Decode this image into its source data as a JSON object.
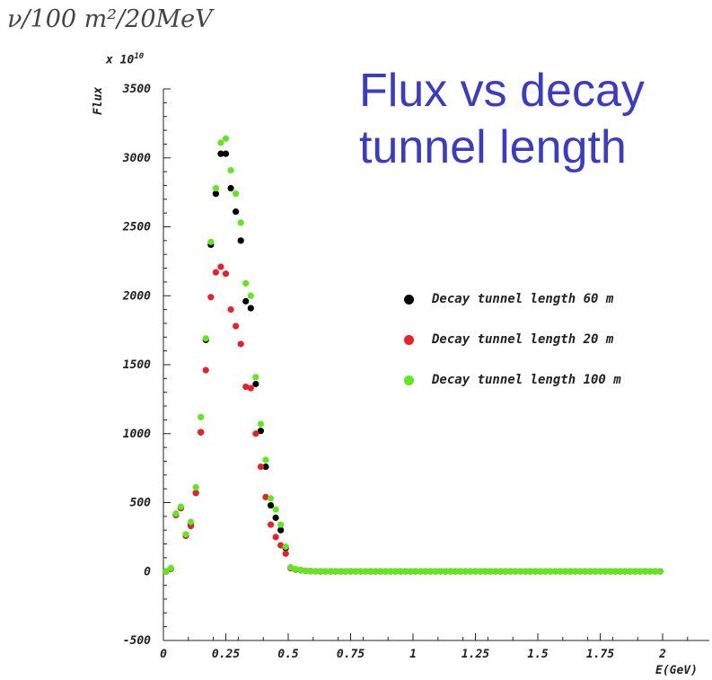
{
  "header": {
    "unit_text": "ν/100 m²/20MeV",
    "title": "Flux vs decay tunnel length"
  },
  "colors": {
    "title": "#3b3bc4",
    "series_60": "#000000",
    "series_20": "#e8202a",
    "series_100": "#5fe81c"
  },
  "chart_data": {
    "type": "scatter",
    "title": "Flux vs decay tunnel length",
    "xlabel": "E(GeV)",
    "ylabel": "Flux",
    "y_multiplier": "x 10^10",
    "multiplier_base": "x 10",
    "multiplier_exp": "10",
    "xlim": [
      0,
      2.2
    ],
    "ylim": [
      -500,
      3500
    ],
    "xticks": [
      0,
      0.25,
      0.5,
      0.75,
      1,
      1.25,
      1.5,
      1.75,
      2
    ],
    "xtick_labels": [
      "0",
      "0.25",
      "0.5",
      "0.75",
      "1",
      "1.25",
      "1.5",
      "1.75",
      "2"
    ],
    "yticks": [
      -500,
      0,
      500,
      1000,
      1500,
      2000,
      2500,
      3000,
      3500
    ],
    "ytick_labels": [
      "-500",
      "0",
      "500",
      "1000",
      "1500",
      "2000",
      "2500",
      "3000",
      "3500"
    ],
    "grid": false,
    "legend_position": "right-middle",
    "x": [
      0.01,
      0.03,
      0.05,
      0.07,
      0.09,
      0.11,
      0.13,
      0.15,
      0.17,
      0.19,
      0.21,
      0.23,
      0.25,
      0.27,
      0.29,
      0.31,
      0.33,
      0.35,
      0.37,
      0.39,
      0.41,
      0.43,
      0.45,
      0.47,
      0.49,
      0.51,
      0.53,
      0.55,
      0.57,
      0.59,
      0.61,
      0.63,
      0.65,
      0.67,
      0.69,
      0.71,
      0.73,
      0.75,
      0.77,
      0.79,
      0.81,
      0.83,
      0.85,
      0.87,
      0.89,
      0.91,
      0.93,
      0.95,
      0.97,
      0.99,
      1.01,
      1.03,
      1.05,
      1.07,
      1.09,
      1.11,
      1.13,
      1.15,
      1.17,
      1.19,
      1.21,
      1.23,
      1.25,
      1.27,
      1.29,
      1.31,
      1.33,
      1.35,
      1.37,
      1.39,
      1.41,
      1.43,
      1.45,
      1.47,
      1.49,
      1.51,
      1.53,
      1.55,
      1.57,
      1.59,
      1.61,
      1.63,
      1.65,
      1.67,
      1.69,
      1.71,
      1.73,
      1.75,
      1.77,
      1.79,
      1.81,
      1.83,
      1.85,
      1.87,
      1.89,
      1.91,
      1.93,
      1.95,
      1.97,
      1.99
    ],
    "series": [
      {
        "name": "Decay tunnel length 60 m",
        "color": "#000000",
        "values": [
          0,
          20,
          410,
          460,
          260,
          340,
          570,
          1010,
          1680,
          2370,
          2740,
          3030,
          3030,
          2780,
          2610,
          2400,
          1960,
          1910,
          1360,
          1020,
          760,
          480,
          390,
          300,
          170,
          25,
          15,
          10,
          5,
          3,
          2,
          1,
          1,
          1,
          1,
          1,
          1,
          1,
          1,
          1,
          1,
          1,
          1,
          1,
          1,
          1,
          1,
          1,
          1,
          1,
          1,
          1,
          1,
          1,
          1,
          1,
          1,
          1,
          1,
          1,
          1,
          1,
          1,
          1,
          1,
          1,
          1,
          1,
          1,
          1,
          1,
          1,
          1,
          1,
          1,
          1,
          1,
          1,
          1,
          1,
          1,
          1,
          1,
          1,
          1,
          1,
          1,
          1,
          1,
          1,
          1,
          1,
          1,
          1,
          1,
          1,
          1,
          1,
          1,
          1
        ]
      },
      {
        "name": "Decay tunnel length 20 m",
        "color": "#e8202a",
        "values": [
          0,
          20,
          410,
          460,
          260,
          330,
          570,
          1010,
          1460,
          1990,
          2170,
          2210,
          2160,
          1900,
          1780,
          1650,
          1340,
          1330,
          1000,
          760,
          540,
          340,
          250,
          190,
          130,
          25,
          15,
          10,
          5,
          3,
          2,
          1,
          1,
          1,
          1,
          1,
          1,
          1,
          1,
          1,
          1,
          1,
          1,
          1,
          1,
          1,
          1,
          1,
          1,
          1,
          1,
          1,
          1,
          1,
          1,
          1,
          1,
          1,
          1,
          1,
          1,
          1,
          1,
          1,
          1,
          1,
          1,
          1,
          1,
          1,
          1,
          1,
          1,
          1,
          1,
          1,
          1,
          1,
          1,
          1,
          1,
          1,
          1,
          1,
          1,
          1,
          1,
          1,
          1,
          1,
          1,
          1,
          1,
          1,
          1,
          1,
          1,
          1,
          1,
          1
        ]
      },
      {
        "name": "Decay tunnel length 100 m",
        "color": "#5fe81c",
        "values": [
          0,
          25,
          420,
          470,
          270,
          360,
          610,
          1120,
          1690,
          2390,
          2780,
          3110,
          3140,
          2910,
          2740,
          2530,
          2090,
          2000,
          1410,
          1070,
          810,
          530,
          450,
          340,
          180,
          30,
          18,
          10,
          5,
          3,
          2,
          1,
          1,
          1,
          1,
          1,
          1,
          1,
          1,
          1,
          1,
          1,
          1,
          1,
          1,
          1,
          1,
          1,
          1,
          1,
          1,
          1,
          1,
          1,
          1,
          1,
          1,
          1,
          1,
          1,
          1,
          1,
          1,
          1,
          1,
          1,
          1,
          1,
          1,
          1,
          1,
          1,
          1,
          1,
          1,
          1,
          1,
          1,
          1,
          1,
          1,
          1,
          1,
          1,
          1,
          1,
          1,
          1,
          1,
          1,
          1,
          1,
          1,
          1,
          1,
          1,
          1,
          1,
          1,
          1
        ]
      }
    ],
    "legend_order": [
      0,
      1,
      2
    ]
  }
}
